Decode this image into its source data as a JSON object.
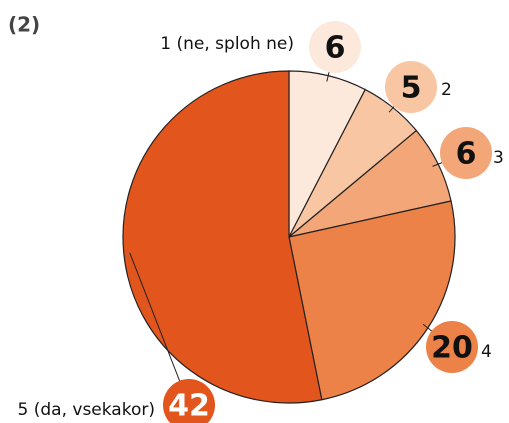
{
  "chart_data": {
    "type": "pie",
    "title": "(2)",
    "categories": [
      "1 (ne, sploh ne)",
      "2",
      "3",
      "4",
      "5 (da, vsekakor)"
    ],
    "values": [
      6,
      5,
      6,
      20,
      42
    ],
    "colors": [
      "#fde8dc",
      "#f9c6a3",
      "#f3a677",
      "#ec8248",
      "#e2561d"
    ]
  }
}
